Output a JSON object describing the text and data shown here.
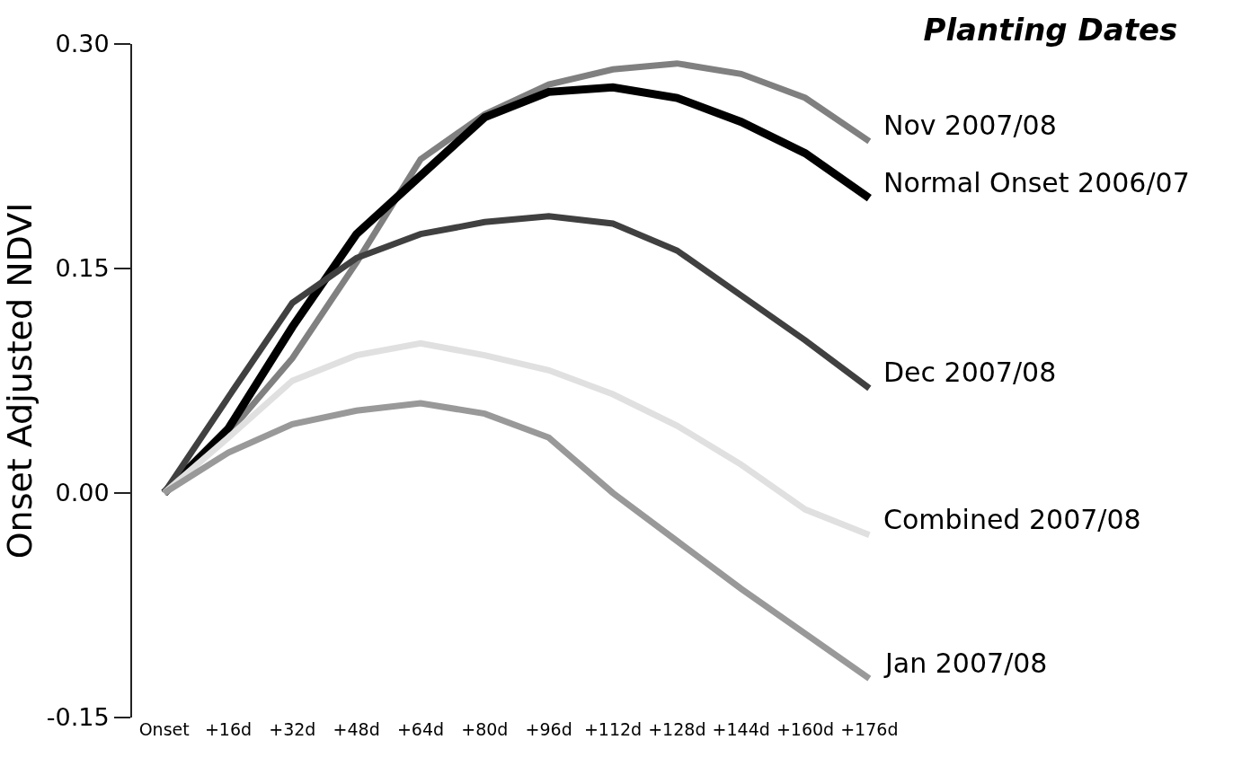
{
  "chart_data": {
    "type": "line",
    "title": "Planting Dates",
    "ylabel": "Onset Adjusted NDVI",
    "categories": [
      "Onset",
      "+16d",
      "+32d",
      "+48d",
      "+64d",
      "+80d",
      "+96d",
      "+112d",
      "+128d",
      "+144d",
      "+160d",
      "+176d"
    ],
    "ylim": [
      -0.15,
      0.3
    ],
    "yticks": [
      {
        "value": -0.15,
        "label": "-0.15"
      },
      {
        "value": 0,
        "label": "0.00"
      },
      {
        "value": 0.15,
        "label": "0.15"
      },
      {
        "value": 0.3,
        "label": "0.30"
      }
    ],
    "grid": false,
    "legend": false,
    "marker": "none",
    "line_style": "solid",
    "series": [
      {
        "name": "Nov 2007/08",
        "color": "#808080",
        "values": [
          0,
          0.04,
          0.09,
          0.154,
          0.223,
          0.253,
          0.273,
          0.283,
          0.287,
          0.28,
          0.264,
          0.235
        ]
      },
      {
        "name": "Normal Onset 2006/07",
        "color": "#000000",
        "values": [
          0,
          0.043,
          0.111,
          0.173,
          0.212,
          0.251,
          0.268,
          0.271,
          0.264,
          0.248,
          0.227,
          0.197
        ]
      },
      {
        "name": "Dec 2007/08",
        "color": "#404040",
        "values": [
          0,
          0.064,
          0.127,
          0.157,
          0.173,
          0.181,
          0.185,
          0.18,
          0.162,
          0.132,
          0.102,
          0.07
        ]
      },
      {
        "name": "Combined 2007/08",
        "color": "#e0e0e0",
        "values": [
          0,
          0.037,
          0.075,
          0.092,
          0.1,
          0.092,
          0.082,
          0.066,
          0.045,
          0.019,
          -0.011,
          -0.028
        ]
      },
      {
        "name": "Jan 2007/08",
        "color": "#999999",
        "values": [
          0,
          0.027,
          0.046,
          0.055,
          0.06,
          0.053,
          0.037,
          0,
          -0.032,
          -0.064,
          -0.094,
          -0.124
        ]
      }
    ]
  }
}
